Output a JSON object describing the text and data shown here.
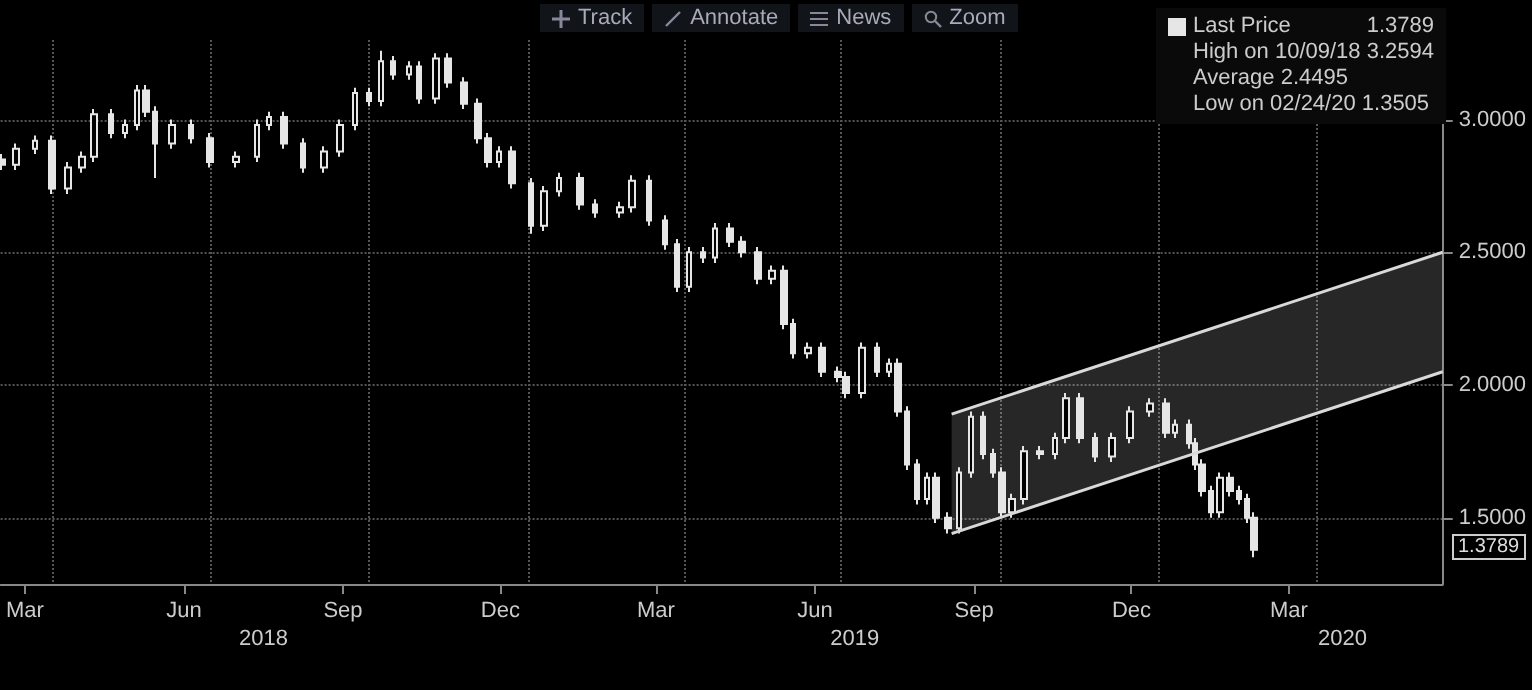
{
  "chart_data": {
    "type": "candlestick",
    "x": [
      "2018-03-03",
      "2018-03-11",
      "2018-03-22",
      "2018-04-01",
      "2018-04-10",
      "2018-04-18",
      "2018-04-25",
      "2018-05-05",
      "2018-05-13",
      "2018-05-20",
      "2018-05-25",
      "2018-05-30",
      "2018-06-09",
      "2018-06-20",
      "2018-07-01",
      "2018-07-16",
      "2018-07-28",
      "2018-08-04",
      "2018-08-13",
      "2018-08-24",
      "2018-09-05",
      "2018-09-14",
      "2018-09-23",
      "2018-10-01",
      "2018-10-08",
      "2018-10-15",
      "2018-10-24",
      "2018-10-30",
      "2018-11-09",
      "2018-11-16",
      "2018-11-25",
      "2018-12-03",
      "2018-12-09",
      "2018-12-15",
      "2018-12-23",
      "2019-01-03",
      "2019-01-10",
      "2019-01-19",
      "2019-01-31",
      "2019-02-09",
      "2019-02-23",
      "2019-03-02",
      "2019-03-12",
      "2019-03-21",
      "2019-03-28",
      "2019-04-04",
      "2019-04-12",
      "2019-04-19",
      "2019-04-28",
      "2019-05-05",
      "2019-05-14",
      "2019-05-22",
      "2019-05-29",
      "2019-06-03",
      "2019-06-12",
      "2019-06-20",
      "2019-06-29",
      "2019-07-04",
      "2019-07-13",
      "2019-07-22",
      "2019-07-29",
      "2019-08-03",
      "2019-08-08",
      "2019-08-14",
      "2019-08-20",
      "2019-08-25",
      "2019-09-01",
      "2019-09-07",
      "2019-09-14",
      "2019-09-21",
      "2019-09-27",
      "2019-10-02",
      "2019-10-08",
      "2019-10-15",
      "2019-10-24",
      "2019-11-02",
      "2019-11-08",
      "2019-11-16",
      "2019-11-25",
      "2019-12-05",
      "2019-12-15",
      "2019-12-27",
      "2020-01-05",
      "2020-01-10",
      "2020-01-18",
      "2020-01-22",
      "2020-01-26",
      "2020-01-31",
      "2020-02-05",
      "2020-02-11",
      "2020-02-16",
      "2020-02-21",
      "2020-02-25"
    ],
    "series": [
      {
        "name": "Last Price",
        "color": "#e6e6e6",
        "ohlc": [
          [
            2.85,
            2.87,
            2.81,
            2.83
          ],
          [
            2.83,
            2.91,
            2.81,
            2.89
          ],
          [
            2.89,
            2.94,
            2.87,
            2.92
          ],
          [
            2.92,
            2.94,
            2.72,
            2.74
          ],
          [
            2.74,
            2.84,
            2.72,
            2.82
          ],
          [
            2.82,
            2.88,
            2.8,
            2.86
          ],
          [
            2.86,
            3.04,
            2.84,
            3.02
          ],
          [
            3.02,
            3.04,
            2.93,
            2.95
          ],
          [
            2.95,
            3.0,
            2.93,
            2.98
          ],
          [
            2.98,
            3.13,
            2.96,
            3.11
          ],
          [
            3.11,
            3.13,
            3.01,
            3.03
          ],
          [
            3.03,
            3.05,
            2.78,
            2.91
          ],
          [
            2.91,
            3.0,
            2.89,
            2.98
          ],
          [
            2.98,
            3.0,
            2.91,
            2.93
          ],
          [
            2.93,
            2.95,
            2.82,
            2.84
          ],
          [
            2.84,
            2.88,
            2.82,
            2.86
          ],
          [
            2.86,
            3.0,
            2.84,
            2.98
          ],
          [
            2.98,
            3.03,
            2.96,
            3.01
          ],
          [
            3.01,
            3.03,
            2.89,
            2.91
          ],
          [
            2.91,
            2.93,
            2.8,
            2.82
          ],
          [
            2.82,
            2.9,
            2.8,
            2.88
          ],
          [
            2.88,
            3.0,
            2.86,
            2.98
          ],
          [
            2.98,
            3.12,
            2.96,
            3.1
          ],
          [
            3.1,
            3.12,
            3.05,
            3.07
          ],
          [
            3.07,
            3.2594,
            3.05,
            3.22
          ],
          [
            3.22,
            3.24,
            3.15,
            3.17
          ],
          [
            3.17,
            3.22,
            3.15,
            3.2
          ],
          [
            3.2,
            3.22,
            3.06,
            3.08
          ],
          [
            3.08,
            3.25,
            3.06,
            3.23
          ],
          [
            3.23,
            3.25,
            3.12,
            3.14
          ],
          [
            3.14,
            3.16,
            3.04,
            3.06
          ],
          [
            3.06,
            3.08,
            2.91,
            2.93
          ],
          [
            2.93,
            2.95,
            2.82,
            2.84
          ],
          [
            2.84,
            2.9,
            2.82,
            2.88
          ],
          [
            2.88,
            2.9,
            2.74,
            2.76
          ],
          [
            2.76,
            2.78,
            2.57,
            2.6
          ],
          [
            2.6,
            2.75,
            2.58,
            2.73
          ],
          [
            2.73,
            2.8,
            2.71,
            2.78
          ],
          [
            2.78,
            2.8,
            2.66,
            2.68
          ],
          [
            2.68,
            2.7,
            2.63,
            2.65
          ],
          [
            2.65,
            2.69,
            2.63,
            2.67
          ],
          [
            2.67,
            2.79,
            2.65,
            2.77
          ],
          [
            2.77,
            2.79,
            2.6,
            2.62
          ],
          [
            2.62,
            2.64,
            2.51,
            2.53
          ],
          [
            2.53,
            2.55,
            2.35,
            2.37
          ],
          [
            2.37,
            2.52,
            2.35,
            2.5
          ],
          [
            2.5,
            2.52,
            2.46,
            2.48
          ],
          [
            2.48,
            2.61,
            2.46,
            2.59
          ],
          [
            2.59,
            2.61,
            2.52,
            2.54
          ],
          [
            2.54,
            2.56,
            2.48,
            2.5
          ],
          [
            2.5,
            2.52,
            2.38,
            2.4
          ],
          [
            2.4,
            2.45,
            2.38,
            2.43
          ],
          [
            2.43,
            2.45,
            2.21,
            2.23
          ],
          [
            2.23,
            2.25,
            2.1,
            2.12
          ],
          [
            2.12,
            2.16,
            2.1,
            2.14
          ],
          [
            2.14,
            2.16,
            2.03,
            2.05
          ],
          [
            2.05,
            2.07,
            2.01,
            2.03
          ],
          [
            2.03,
            2.05,
            1.95,
            1.97
          ],
          [
            1.97,
            2.16,
            1.95,
            2.14
          ],
          [
            2.14,
            2.16,
            2.03,
            2.05
          ],
          [
            2.05,
            2.1,
            2.03,
            2.08
          ],
          [
            2.08,
            2.1,
            1.88,
            1.9
          ],
          [
            1.9,
            1.92,
            1.68,
            1.7
          ],
          [
            1.7,
            1.72,
            1.55,
            1.57
          ],
          [
            1.57,
            1.67,
            1.55,
            1.65
          ],
          [
            1.65,
            1.67,
            1.48,
            1.5
          ],
          [
            1.5,
            1.52,
            1.44,
            1.46
          ],
          [
            1.46,
            1.69,
            1.44,
            1.67
          ],
          [
            1.67,
            1.9,
            1.65,
            1.88
          ],
          [
            1.88,
            1.9,
            1.72,
            1.74
          ],
          [
            1.74,
            1.76,
            1.65,
            1.67
          ],
          [
            1.67,
            1.69,
            1.5,
            1.52
          ],
          [
            1.52,
            1.59,
            1.5,
            1.57
          ],
          [
            1.57,
            1.77,
            1.55,
            1.75
          ],
          [
            1.75,
            1.77,
            1.72,
            1.74
          ],
          [
            1.74,
            1.82,
            1.72,
            1.8
          ],
          [
            1.8,
            1.97,
            1.78,
            1.95
          ],
          [
            1.95,
            1.97,
            1.78,
            1.8
          ],
          [
            1.8,
            1.82,
            1.71,
            1.73
          ],
          [
            1.73,
            1.82,
            1.71,
            1.8
          ],
          [
            1.8,
            1.92,
            1.78,
            1.9
          ],
          [
            1.9,
            1.95,
            1.88,
            1.93
          ],
          [
            1.93,
            1.95,
            1.8,
            1.82
          ],
          [
            1.82,
            1.87,
            1.8,
            1.85
          ],
          [
            1.85,
            1.87,
            1.76,
            1.78
          ],
          [
            1.78,
            1.8,
            1.68,
            1.7
          ],
          [
            1.7,
            1.72,
            1.58,
            1.6
          ],
          [
            1.6,
            1.62,
            1.5,
            1.52
          ],
          [
            1.52,
            1.67,
            1.5,
            1.65
          ],
          [
            1.65,
            1.67,
            1.58,
            1.6
          ],
          [
            1.6,
            1.62,
            1.55,
            1.57
          ],
          [
            1.57,
            1.59,
            1.48,
            1.5
          ],
          [
            1.5,
            1.52,
            1.3505,
            1.3789
          ]
        ]
      },
      {
        "type": "line",
        "color": "#d9d9d9",
        "x": [
          "2019-09-03",
          "2020-06-13"
        ],
        "values": [
          1.89,
          2.5
        ],
        "lower": [
          1.44,
          2.05
        ],
        "upper": [
          1.89,
          2.5
        ]
      },
      {
        "type": "line",
        "color": "#d9d9d9",
        "x": [
          "2019-09-03",
          "2020-06-13"
        ],
        "values": [
          1.44,
          2.05
        ]
      }
    ],
    "xlim": [
      "2018-03-02",
      "2020-06-13"
    ],
    "xticks": [
      {
        "value": "2018-03-16",
        "label": "Mar"
      },
      {
        "value": "2018-06-16",
        "label": "Jun"
      },
      {
        "value": "2018-09-16",
        "label": "Sep"
      },
      {
        "value": "2018-12-16",
        "label": "Dec"
      },
      {
        "value": "2019-03-16",
        "label": "Mar"
      },
      {
        "value": "2019-06-16",
        "label": "Jun"
      },
      {
        "value": "2019-09-16",
        "label": "Sep"
      },
      {
        "value": "2019-12-16",
        "label": "Dec"
      },
      {
        "value": "2020-03-16",
        "label": "Mar"
      },
      {
        "value": "2018-04-01",
        "label": null
      },
      {
        "value": "2018-07-01",
        "label": null
      },
      {
        "value": "2018-10-01",
        "label": null
      },
      {
        "value": "2019-01-01",
        "label": null
      },
      {
        "value": "2019-04-01",
        "label": null
      },
      {
        "value": "2019-07-01",
        "label": null
      },
      {
        "value": "2019-10-01",
        "label": null
      },
      {
        "value": "2020-01-01",
        "label": null
      },
      {
        "value": "2020-04-01",
        "label": null
      }
    ],
    "x2lim": [
      "2018-03-02",
      "2020-06-13"
    ],
    "x2ticks": [
      {
        "value": "2018-08-01",
        "label": "2018"
      },
      {
        "value": "2019-07-09",
        "label": "2019"
      },
      {
        "value": "2020-04-16",
        "label": "2020"
      }
    ],
    "ylim": [
      1.25,
      3.3
    ],
    "yticks": [
      {
        "value": 1.5,
        "label": "1.5000"
      },
      {
        "value": 2.0,
        "label": "2.0000"
      },
      {
        "value": 2.5,
        "label": "2.5000"
      },
      {
        "value": 3.0,
        "label": "3.0000"
      }
    ],
    "grid": true,
    "legend": "top right",
    "annotations": [
      "Track",
      "Annotate",
      "News",
      "Zoom",
      "1.3789",
      "High on 10/09/18 3.2594",
      "Average 2.4495",
      "Low on 02/24/20 1.3505",
      "1.3789"
    ]
  }
}
